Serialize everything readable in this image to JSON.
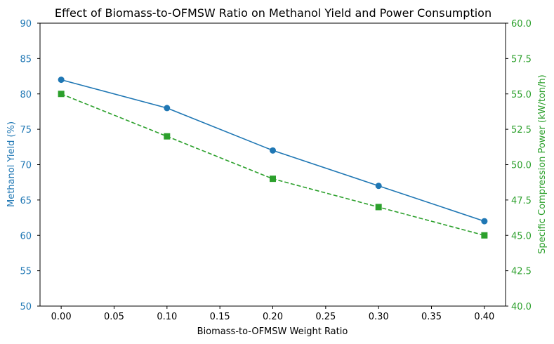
{
  "chart_data": {
    "type": "line",
    "title": "Effect of Biomass-to-OFMSW Ratio on Methanol Yield and Power Consumption",
    "xlabel": "Biomass-to-OFMSW Weight Ratio",
    "x": [
      0.0,
      0.1,
      0.2,
      0.3,
      0.4
    ],
    "xlim": [
      -0.02,
      0.42
    ],
    "xticks": [
      "0.00",
      "0.05",
      "0.10",
      "0.15",
      "0.20",
      "0.25",
      "0.30",
      "0.35",
      "0.40"
    ],
    "xtick_values": [
      0.0,
      0.05,
      0.1,
      0.15,
      0.2,
      0.25,
      0.3,
      0.35,
      0.4
    ],
    "left_axis": {
      "label": "Methanol Yield (%)",
      "color": "#1f77b4",
      "ylim": [
        50,
        90
      ],
      "ticks": [
        "50",
        "55",
        "60",
        "65",
        "70",
        "75",
        "80",
        "85",
        "90"
      ],
      "tick_values": [
        50,
        55,
        60,
        65,
        70,
        75,
        80,
        85,
        90
      ]
    },
    "right_axis": {
      "label": "Specific Compression Power (kW/ton/h)",
      "color": "#2ca02c",
      "ylim": [
        40,
        60
      ],
      "ticks": [
        "40.0",
        "42.5",
        "45.0",
        "47.5",
        "50.0",
        "52.5",
        "55.0",
        "57.5",
        "60.0"
      ],
      "tick_values": [
        40,
        42.5,
        45,
        47.5,
        50,
        52.5,
        55,
        57.5,
        60
      ]
    },
    "series": [
      {
        "name": "Methanol Yield",
        "axis": "left",
        "color": "#1f77b4",
        "marker": "circle",
        "linestyle": "solid",
        "values": [
          82,
          78,
          72,
          67,
          62
        ]
      },
      {
        "name": "Specific Compression Power",
        "axis": "right",
        "color": "#2ca02c",
        "marker": "square",
        "linestyle": "dashed",
        "values": [
          55,
          52,
          49,
          47,
          45
        ]
      }
    ]
  }
}
